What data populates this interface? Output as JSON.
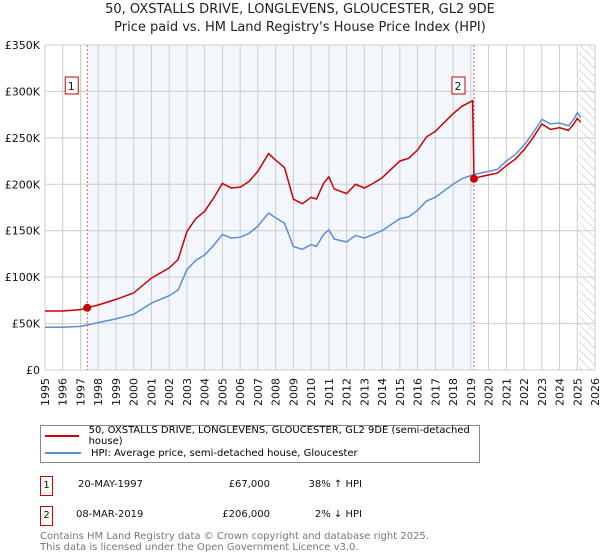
{
  "chart_data": {
    "type": "line",
    "title": "50, OXSTALLS DRIVE, LONGLEVENS, GLOUCESTER, GL2 9DE",
    "subtitle": "Price paid vs. HM Land Registry's House Price Index (HPI)",
    "xlim": [
      1995,
      2026
    ],
    "ylim": [
      0,
      350000
    ],
    "yticks": [
      {
        "v": 0,
        "label": "£0"
      },
      {
        "v": 50000,
        "label": "£50K"
      },
      {
        "v": 100000,
        "label": "£100K"
      },
      {
        "v": 150000,
        "label": "£150K"
      },
      {
        "v": 200000,
        "label": "£200K"
      },
      {
        "v": 250000,
        "label": "£250K"
      },
      {
        "v": 300000,
        "label": "£300K"
      },
      {
        "v": 350000,
        "label": "£350K"
      }
    ],
    "xticks": [
      "1995",
      "1996",
      "1997",
      "1998",
      "1999",
      "2000",
      "2001",
      "2002",
      "2003",
      "2004",
      "2005",
      "2006",
      "2007",
      "2008",
      "2009",
      "2010",
      "2011",
      "2012",
      "2013",
      "2014",
      "2015",
      "2016",
      "2017",
      "2018",
      "2019",
      "2020",
      "2021",
      "2022",
      "2023",
      "2024",
      "2025",
      "2026"
    ],
    "grid": true,
    "shaded_range": [
      1997.38,
      2019.18
    ],
    "forecast_hatch_from": 2025.1,
    "series": [
      {
        "name": "50, OXSTALLS DRIVE, LONGLEVENS, GLOUCESTER, GL2 9DE (semi-detached house)",
        "color": "#cc0000",
        "x": [
          1995,
          1996,
          1997,
          1997.38,
          1998,
          1999,
          2000,
          2001,
          2002,
          2002.5,
          2003,
          2003.5,
          2004,
          2004.5,
          2005,
          2005.5,
          2006,
          2006.5,
          2007,
          2007.6,
          2008,
          2008.5,
          2009,
          2009.5,
          2010,
          2010.3,
          2010.7,
          2011,
          2011.3,
          2012,
          2012.5,
          2013,
          2013.5,
          2014,
          2015,
          2015.5,
          2016,
          2016.5,
          2017,
          2018,
          2018.5,
          2019.1,
          2019.18,
          2019.5,
          2020,
          2020.5,
          2021,
          2021.5,
          2022,
          2022.5,
          2023,
          2023.5,
          2024,
          2024.5,
          2024.8,
          2025,
          2025.2
        ],
        "y": [
          63500,
          63500,
          65000,
          67000,
          70000,
          76000,
          83000,
          99000,
          110000,
          119000,
          149000,
          163000,
          171000,
          185000,
          201000,
          196000,
          197000,
          203000,
          214000,
          233000,
          226000,
          218000,
          184000,
          179000,
          186000,
          184000,
          201000,
          208000,
          195000,
          190000,
          200000,
          196000,
          201000,
          207000,
          225000,
          228000,
          237000,
          251000,
          257000,
          276000,
          284000,
          290000,
          206000,
          208000,
          210000,
          212000,
          220000,
          227000,
          237000,
          250000,
          265000,
          259000,
          261000,
          258000,
          265000,
          271000,
          267000
        ]
      },
      {
        "name": "HPI: Average price, semi-detached house, Gloucester",
        "color": "#5b8fd4",
        "x": [
          1995,
          1996,
          1997,
          1997.38,
          1998,
          1999,
          2000,
          2001,
          2002,
          2002.5,
          2003,
          2003.5,
          2004,
          2004.5,
          2005,
          2005.5,
          2006,
          2006.5,
          2007,
          2007.6,
          2008,
          2008.5,
          2009,
          2009.5,
          2010,
          2010.3,
          2010.7,
          2011,
          2011.3,
          2012,
          2012.5,
          2013,
          2013.5,
          2014,
          2015,
          2015.5,
          2016,
          2016.5,
          2017,
          2018,
          2018.5,
          2019.1,
          2019.5,
          2020,
          2020.5,
          2021,
          2021.5,
          2022,
          2022.5,
          2023,
          2023.5,
          2024,
          2024.5,
          2024.8,
          2025,
          2025.2
        ],
        "y": [
          46000,
          46000,
          47000,
          48500,
          51000,
          55000,
          60000,
          72000,
          80000,
          86000,
          108000,
          118000,
          124000,
          134000,
          146000,
          142000,
          143000,
          147000,
          155000,
          169000,
          164000,
          158000,
          133000,
          130000,
          135000,
          133000,
          146000,
          151000,
          141000,
          138000,
          145000,
          142000,
          146000,
          150000,
          163000,
          165000,
          172000,
          182000,
          186000,
          200000,
          206000,
          210000,
          212000,
          214000,
          216000,
          225000,
          232000,
          242000,
          255000,
          270000,
          265000,
          266000,
          263000,
          270000,
          277000,
          272000
        ]
      }
    ],
    "annotations": [
      {
        "label": "1",
        "x": 1997.38,
        "y": 67000
      },
      {
        "label": "2",
        "x": 2019.18,
        "y": 206000
      }
    ]
  },
  "legend": {
    "property": "50, OXSTALLS DRIVE, LONGLEVENS, GLOUCESTER, GL2 9DE (semi-detached house)",
    "hpi": "HPI: Average price, semi-detached house, Gloucester"
  },
  "sales": [
    {
      "num": "1",
      "date": "20-MAY-1997",
      "price": "£67,000",
      "hpi": "38% ↑ HPI"
    },
    {
      "num": "2",
      "date": "08-MAR-2019",
      "price": "£206,000",
      "hpi": "2% ↓ HPI"
    }
  ],
  "footer": {
    "line1": "Contains HM Land Registry data © Crown copyright and database right 2025.",
    "line2": "This data is licensed under the Open Government Licence v3.0."
  }
}
